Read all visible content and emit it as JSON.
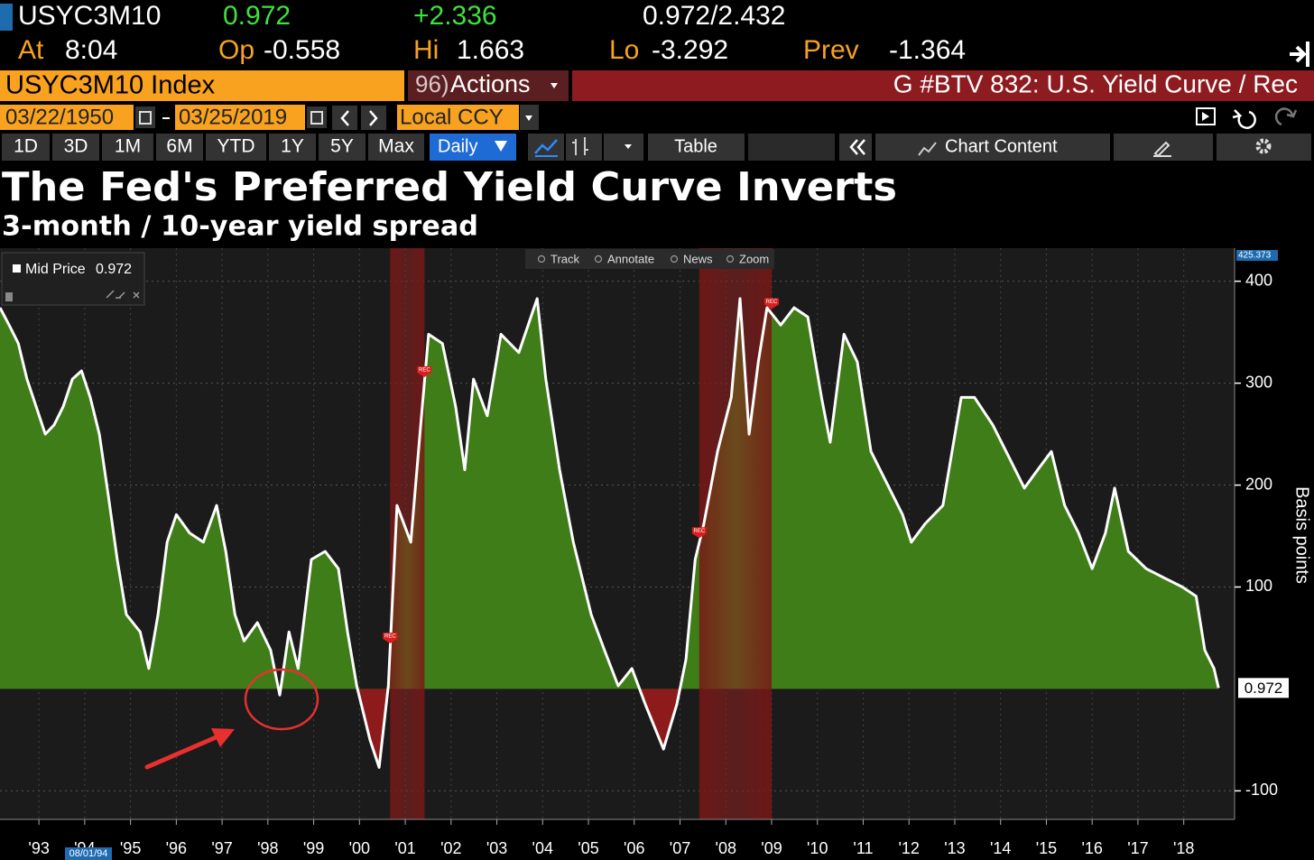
{
  "terminal": {
    "ticker": "USYC3M10",
    "last": "0.972",
    "change": "+2.336",
    "range": "0.972/2.432",
    "at_label": "At",
    "time": "8:04",
    "open_label": "Op",
    "open": "-0.558",
    "high_label": "Hi",
    "high": "1.663",
    "low_label": "Lo",
    "low": "-3.292",
    "prev_label": "Prev",
    "prev": "-1.364",
    "security": "USYC3M10 Index",
    "actions_code": "96)",
    "actions": "Actions",
    "function": "G #BTV 832: U.S. Yield Curve / Rec",
    "start_date": "03/22/1950",
    "end_date": "03/25/2019",
    "currency": "Local CCY",
    "periods": [
      "1D",
      "3D",
      "1M",
      "6M",
      "YTD",
      "1Y",
      "5Y",
      "Max"
    ],
    "frequency": "Daily",
    "table": "Table",
    "chart_content": "Chart Content",
    "chart_tools": [
      "Track",
      "Annotate",
      "News",
      "Zoom"
    ]
  },
  "chart_data": {
    "type": "area",
    "title": "The Fed's Preferred Yield Curve Inverts",
    "subtitle": "3-month / 10-year yield spread",
    "y_label": "Basis points",
    "x_cursor_label": "08/01/94",
    "series": [
      {
        "name": "Mid Price",
        "color": "#3f7d18",
        "negative_color": "#8e1b1b",
        "line_color": "#ffffff",
        "x": [
          1992.65,
          1992.85,
          1993.05,
          1993.24,
          1993.44,
          1993.64,
          1993.83,
          1994.03,
          1994.23,
          1994.43,
          1994.62,
          1994.82,
          1995.02,
          1995.21,
          1995.41,
          1995.71,
          1995.9,
          1996.1,
          1996.3,
          1996.5,
          1996.79,
          1997.09,
          1997.38,
          1997.58,
          1997.78,
          1997.98,
          1998.27,
          1998.56,
          1998.76,
          1998.96,
          1999.16,
          1999.45,
          1999.75,
          2000.04,
          2000.24,
          2000.44,
          2000.73,
          2000.93,
          2001.13,
          2001.32,
          2001.62,
          2001.82,
          2002.01,
          2002.31,
          2002.6,
          2002.8,
          2002.99,
          2003.29,
          2003.59,
          2003.98,
          2004.38,
          2004.57,
          2004.87,
          2005.17,
          2005.56,
          2005.85,
          2006.15,
          2006.45,
          2006.74,
          2007.14,
          2007.43,
          2007.63,
          2007.83,
          2008.02,
          2008.32,
          2008.62,
          2008.81,
          2009.01,
          2009.21,
          2009.4,
          2009.7,
          2009.99,
          2010.29,
          2010.59,
          2010.78,
          2011.08,
          2011.37,
          2011.67,
          2012.07,
          2012.36,
          2012.55,
          2012.85,
          2013.24,
          2013.64,
          2013.93,
          2014.33,
          2014.72,
          2015.02,
          2015.31,
          2015.61,
          2015.9,
          2016.2,
          2016.5,
          2016.79,
          2016.99,
          2017.29,
          2017.68,
          2018.07,
          2018.47,
          2018.77,
          2018.96,
          2019.16,
          2019.26
        ],
        "values": [
          374,
          357,
          339,
          304,
          277,
          250,
          259,
          277,
          304,
          312,
          286,
          250,
          188,
          127,
          73,
          56,
          20,
          73,
          144,
          171,
          153,
          144,
          180,
          135,
          73,
          47,
          65,
          38,
          -6,
          56,
          20,
          127,
          135,
          118,
          56,
          3,
          -50,
          -77,
          3,
          180,
          144,
          250,
          348,
          339,
          277,
          215,
          304,
          268,
          348,
          330,
          383,
          304,
          215,
          144,
          73,
          38,
          3,
          20,
          -15,
          -59,
          -15,
          29,
          127,
          162,
          233,
          286,
          383,
          250,
          321,
          374,
          357,
          374,
          365,
          286,
          242,
          348,
          321,
          233,
          197,
          171,
          144,
          162,
          180,
          286,
          286,
          259,
          224,
          197,
          215,
          233,
          180,
          153,
          118,
          153,
          197,
          135,
          118,
          109,
          100,
          91,
          38,
          20,
          0.972
        ]
      }
    ],
    "recessions": [
      {
        "start": 2001.17,
        "end": 2001.92
      },
      {
        "start": 2007.92,
        "end": 2009.5
      }
    ],
    "recession_label": "REC",
    "xlim": [
      1992.65,
      2019.61
    ],
    "xticks": [
      {
        "value": 1993.5,
        "label": "'93"
      },
      {
        "value": 1994.5,
        "label": "'94"
      },
      {
        "value": 1995.5,
        "label": "'95"
      },
      {
        "value": 1996.5,
        "label": "'96"
      },
      {
        "value": 1997.5,
        "label": "'97"
      },
      {
        "value": 1998.5,
        "label": "'98"
      },
      {
        "value": 1999.5,
        "label": "'99"
      },
      {
        "value": 2000.5,
        "label": "'00"
      },
      {
        "value": 2001.5,
        "label": "'01"
      },
      {
        "value": 2002.5,
        "label": "'02"
      },
      {
        "value": 2003.5,
        "label": "'03"
      },
      {
        "value": 2004.5,
        "label": "'04"
      },
      {
        "value": 2005.5,
        "label": "'05"
      },
      {
        "value": 2006.5,
        "label": "'06"
      },
      {
        "value": 2007.5,
        "label": "'07"
      },
      {
        "value": 2008.5,
        "label": "'08"
      },
      {
        "value": 2009.5,
        "label": "'09"
      },
      {
        "value": 2010.5,
        "label": "'10"
      },
      {
        "value": 2011.5,
        "label": "'11"
      },
      {
        "value": 2012.5,
        "label": "'12"
      },
      {
        "value": 2013.5,
        "label": "'13"
      },
      {
        "value": 2014.5,
        "label": "'14"
      },
      {
        "value": 2015.5,
        "label": "'15"
      },
      {
        "value": 2016.5,
        "label": "'16"
      },
      {
        "value": 2017.5,
        "label": "'17"
      },
      {
        "value": 2018.5,
        "label": "'18"
      }
    ],
    "ylim": [
      -128,
      425.373
    ],
    "yticks": [
      -100,
      100,
      200,
      300,
      400
    ],
    "grid": true
  }
}
